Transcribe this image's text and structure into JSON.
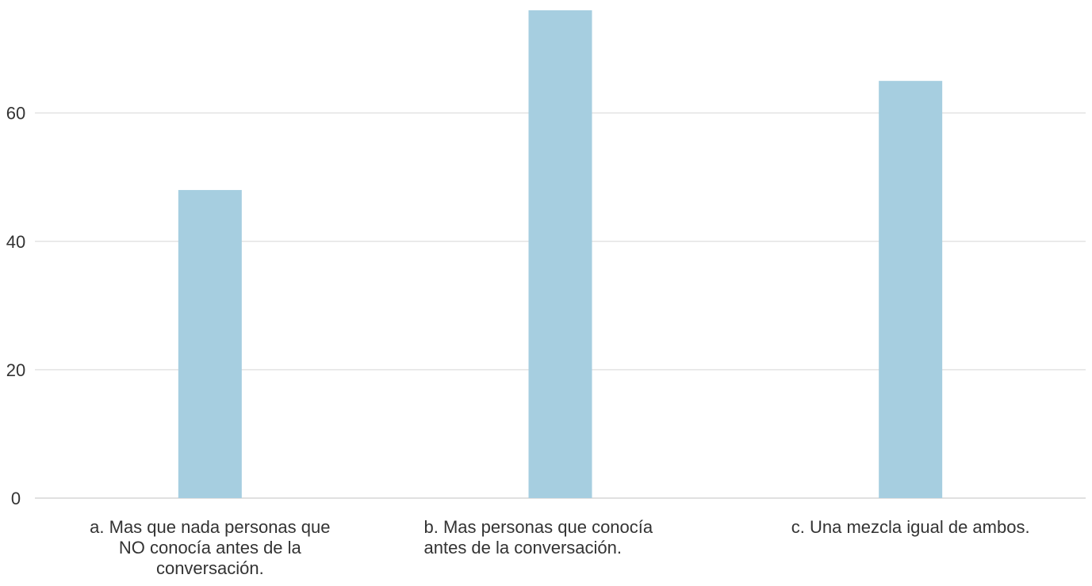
{
  "chart_data": {
    "type": "bar",
    "title": "",
    "xlabel": "",
    "ylabel": "",
    "categories": [
      [
        "a. Mas que nada personas que",
        "NO conocía antes de la",
        "conversación."
      ],
      [
        "b. Mas personas que conocía",
        "antes de la conversación."
      ],
      [
        "c. Una mezcla igual de ambos."
      ]
    ],
    "category_align": [
      "center",
      "start",
      "center"
    ],
    "values": [
      48,
      76,
      65
    ],
    "ylim": [
      0,
      76
    ],
    "yticks": [
      "0",
      "20",
      "40",
      "60"
    ],
    "ytick_values": [
      0,
      20,
      40,
      60
    ],
    "grid": true,
    "bar_color": "#a6cee0",
    "grid_color": "#e3e3e3",
    "text_color": "#333333"
  }
}
